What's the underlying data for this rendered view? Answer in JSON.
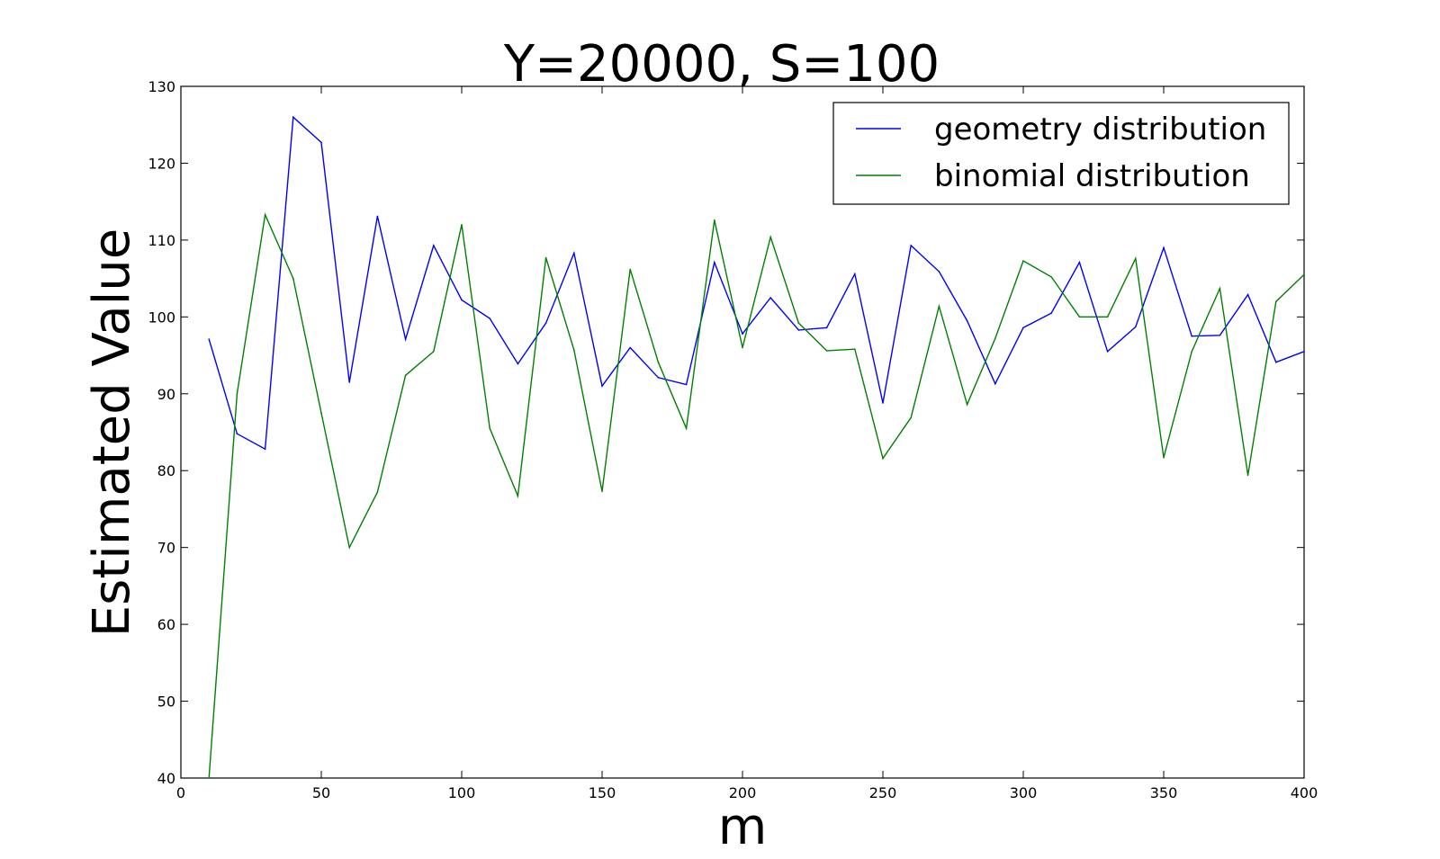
{
  "chart_data": {
    "type": "line",
    "title": "Y=20000, S=100",
    "xlabel": "m",
    "ylabel": "Estimated Value",
    "xlim": [
      0,
      400
    ],
    "ylim": [
      40,
      130
    ],
    "xticks": [
      "0",
      "50",
      "100",
      "150",
      "200",
      "250",
      "300",
      "350",
      "400"
    ],
    "yticks": [
      "40",
      "50",
      "60",
      "70",
      "80",
      "90",
      "100",
      "110",
      "120",
      "130"
    ],
    "grid": false,
    "legend_position": "top-right",
    "x": [
      10,
      20,
      30,
      40,
      50,
      60,
      70,
      80,
      90,
      100,
      110,
      120,
      130,
      140,
      150,
      160,
      170,
      180,
      190,
      200,
      210,
      220,
      230,
      240,
      250,
      260,
      270,
      280,
      290,
      300,
      310,
      320,
      330,
      340,
      350,
      360,
      370,
      380,
      390,
      400
    ],
    "series": [
      {
        "name": "geometry distribution",
        "color": "#0000ff",
        "values": [
          97.1,
          84.8,
          82.8,
          126.0,
          122.7,
          91.5,
          113.1,
          97.1,
          109.3,
          102.2,
          99.8,
          93.9,
          99.2,
          108.3,
          91.0,
          96.0,
          92.1,
          91.2,
          107.1,
          97.8,
          102.5,
          98.3,
          98.6,
          105.6,
          88.8,
          109.3,
          105.9,
          99.5,
          91.3,
          98.6,
          100.5,
          107.1,
          95.5,
          98.7,
          109.0,
          97.5,
          97.6,
          102.9,
          94.1,
          95.5
        ]
      },
      {
        "name": "binomial distribution",
        "color": "#008000",
        "values": [
          40.0,
          90.0,
          113.3,
          105.0,
          87.5,
          70.0,
          77.2,
          92.4,
          95.5,
          112.0,
          85.5,
          76.7,
          107.7,
          95.7,
          77.3,
          106.2,
          94.1,
          85.5,
          112.6,
          96.0,
          110.4,
          99.2,
          95.6,
          95.8,
          81.6,
          86.9,
          101.4,
          88.6,
          97.2,
          107.3,
          105.2,
          100.0,
          100.0,
          107.6,
          81.7,
          95.5,
          103.7,
          79.4,
          102.0,
          105.5
        ]
      }
    ]
  }
}
